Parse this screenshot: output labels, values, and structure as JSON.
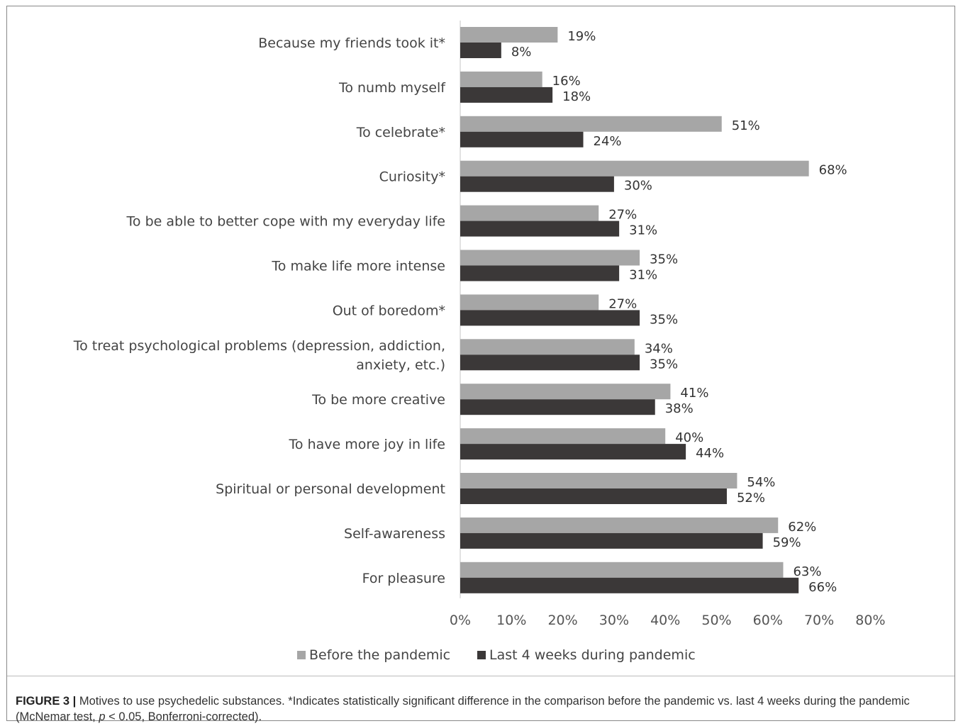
{
  "chart_data": {
    "type": "bar",
    "orientation": "horizontal",
    "categories": [
      "Because my friends took it*",
      "To numb myself",
      "To celebrate*",
      "Curiosity*",
      "To be able to better cope with my everyday life",
      "To make life more intense",
      "Out of boredom*",
      [
        "To treat psychological problems (depression, addiction,",
        "anxiety, etc.)"
      ],
      "To be more creative",
      "To have more joy in life",
      "Spiritual or personal development",
      "Self-awareness",
      "For pleasure"
    ],
    "series": [
      {
        "name": "Before the pandemic",
        "color": "#a6a6a6",
        "values": [
          19,
          16,
          51,
          68,
          27,
          35,
          27,
          34,
          41,
          40,
          54,
          62,
          63
        ]
      },
      {
        "name": "Last 4 weeks during pandemic",
        "color": "#3b3838",
        "values": [
          8,
          18,
          24,
          30,
          31,
          31,
          35,
          35,
          38,
          44,
          52,
          59,
          66
        ]
      }
    ],
    "value_suffix": "%",
    "xlim": [
      0,
      80
    ],
    "xticks": [
      "0%",
      "10%",
      "20%",
      "30%",
      "40%",
      "50%",
      "60%",
      "70%",
      "80%"
    ],
    "grid": false,
    "legend_position": "bottom"
  },
  "caption": {
    "figure_label": "FIGURE 3 |",
    "text_before_p": " Motives to use psychedelic substances. *Indicates statistically significant difference in the comparison before the pandemic vs. last 4 weeks during the pandemic (McNemar test, ",
    "p_symbol": "p",
    "text_after_p": " < 0.05, Bonferroni-corrected)."
  }
}
